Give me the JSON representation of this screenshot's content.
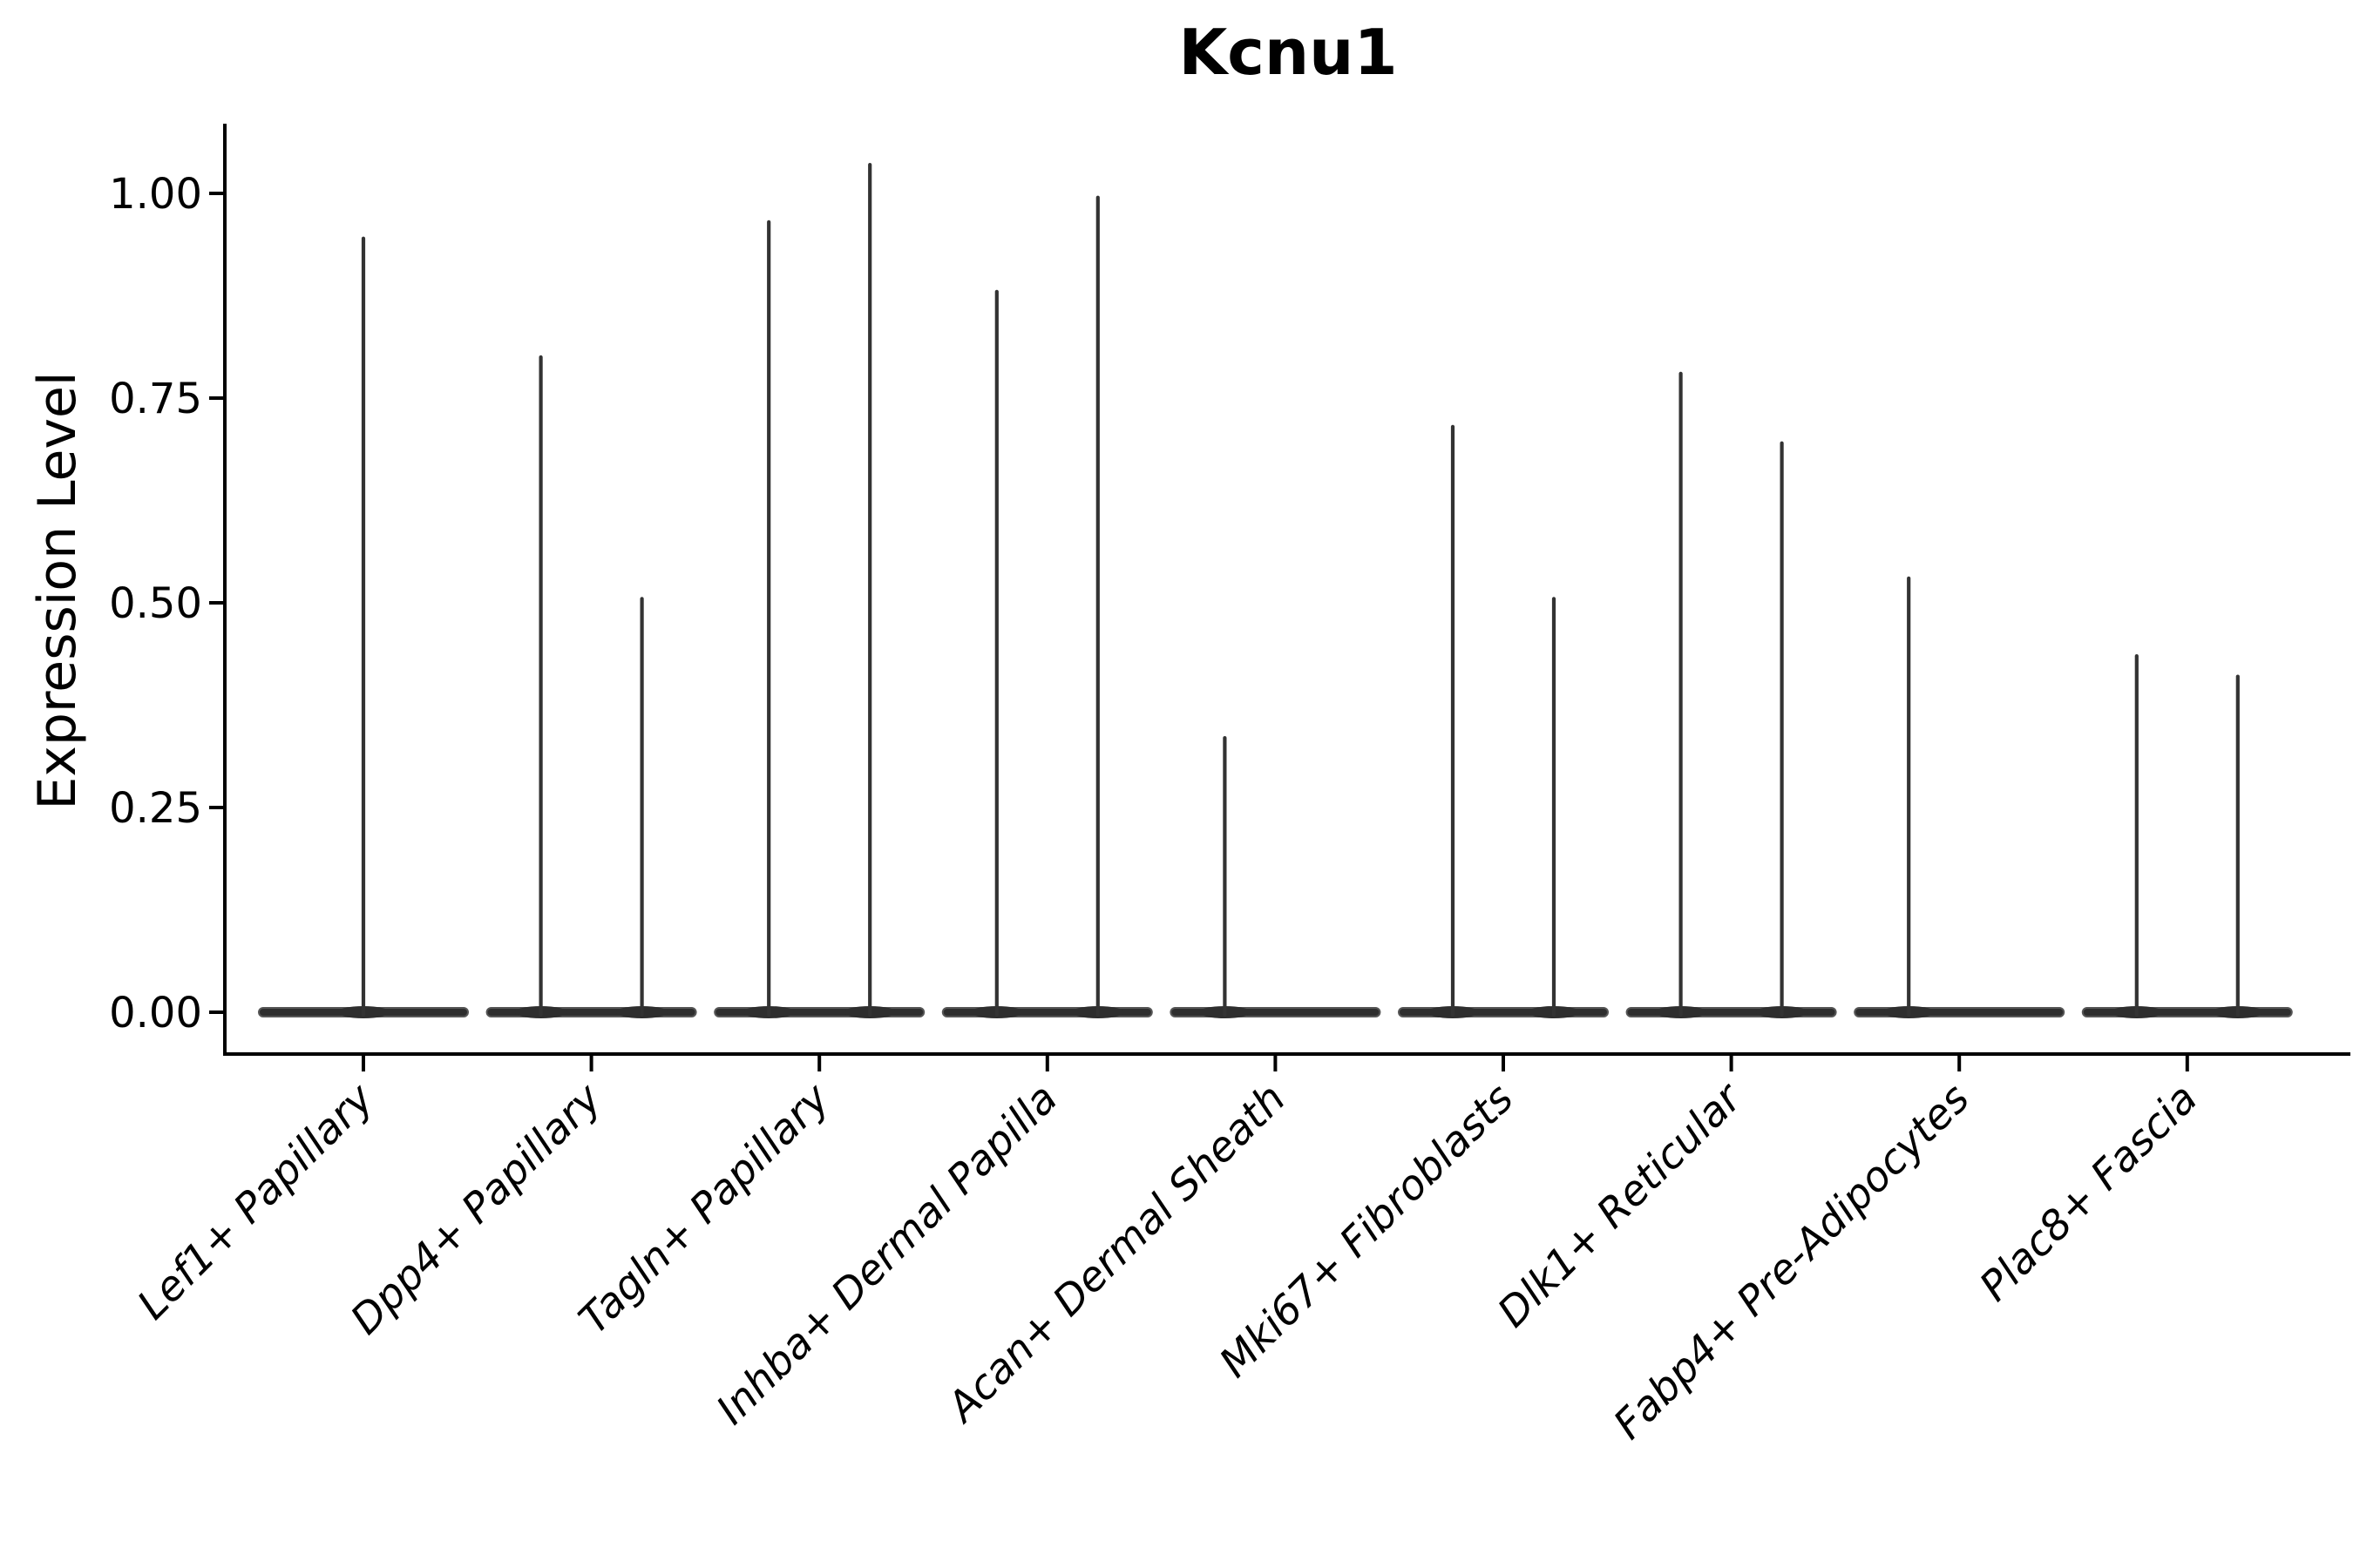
{
  "figure": {
    "background": "#ffffff"
  },
  "chart_data": {
    "type": "violin",
    "title": "Kcnu1",
    "ylabel": "Expression Level",
    "xlabel": "",
    "ylim": [
      -0.05,
      1.085
    ],
    "grid": false,
    "legend": "none",
    "yticks": [
      {
        "value": 0.0,
        "label": "0.00"
      },
      {
        "value": 0.25,
        "label": "0.25"
      },
      {
        "value": 0.5,
        "label": "0.50"
      },
      {
        "value": 0.75,
        "label": "0.75"
      },
      {
        "value": 1.0,
        "label": "1.00"
      }
    ],
    "categories": [
      "Lef1+ Papillary",
      "Dpp4+ Papillary",
      "Tagln+ Papillary",
      "Inhba+ Dermal Papilla",
      "Acan+ Dermal Sheath",
      "Mki67+ Fibroblasts",
      "Dlk1+ Reticular",
      "Fabp4+ Pre-Adipocytes",
      "Plac8+ Fascia"
    ],
    "series": [
      {
        "category": "Lef1+ Papillary",
        "violins": [
          {
            "pos": "center",
            "max": 0.945
          }
        ]
      },
      {
        "category": "Dpp4+ Papillary",
        "violins": [
          {
            "pos": "left",
            "max": 0.8
          },
          {
            "pos": "right",
            "max": 0.505
          }
        ]
      },
      {
        "category": "Tagln+ Papillary",
        "violins": [
          {
            "pos": "left",
            "max": 0.965
          },
          {
            "pos": "right",
            "max": 1.035
          }
        ]
      },
      {
        "category": "Inhba+ Dermal Papilla",
        "violins": [
          {
            "pos": "left",
            "max": 0.88
          },
          {
            "pos": "right",
            "max": 0.995
          }
        ]
      },
      {
        "category": "Acan+ Dermal Sheath",
        "violins": [
          {
            "pos": "left",
            "max": 0.335
          },
          {
            "pos": "right",
            "max": 0.0
          }
        ]
      },
      {
        "category": "Mki67+ Fibroblasts",
        "violins": [
          {
            "pos": "left",
            "max": 0.715
          },
          {
            "pos": "right",
            "max": 0.505
          }
        ]
      },
      {
        "category": "Dlk1+ Reticular",
        "violins": [
          {
            "pos": "left",
            "max": 0.78
          },
          {
            "pos": "right",
            "max": 0.695
          }
        ]
      },
      {
        "category": "Fabp4+ Pre-Adipocytes",
        "violins": [
          {
            "pos": "left",
            "max": 0.53
          },
          {
            "pos": "right",
            "max": 0.0
          }
        ]
      },
      {
        "category": "Plac8+ Fascia",
        "violins": [
          {
            "pos": "left",
            "max": 0.435
          },
          {
            "pos": "right",
            "max": 0.41
          }
        ]
      }
    ],
    "colors": {
      "violin_fill": "#2e2e2e",
      "violin_edge": "#565656",
      "spike": "#333333",
      "axis": "#000000",
      "text": "#000000"
    }
  }
}
